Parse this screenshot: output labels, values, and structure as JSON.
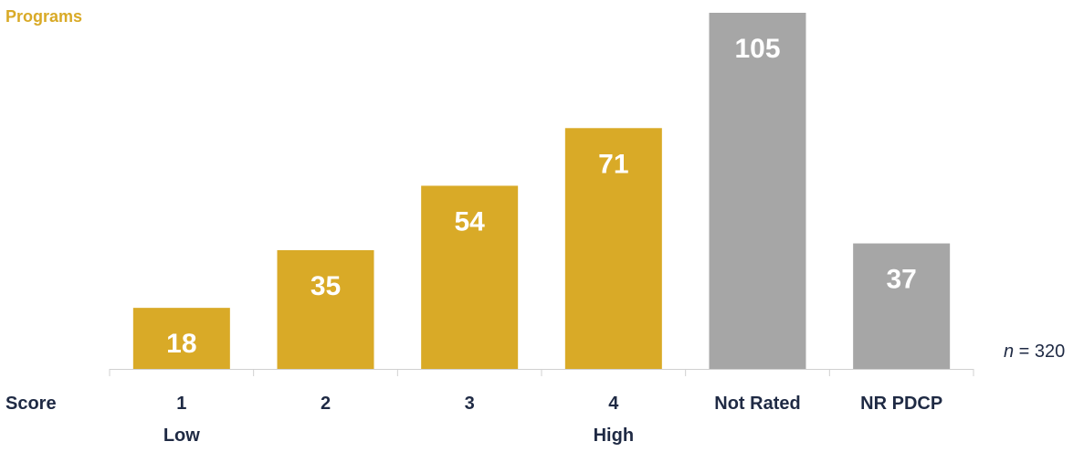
{
  "chart_data": {
    "type": "bar",
    "ylabel": "Programs",
    "xaxis_label": "Score",
    "categories": [
      "1",
      "2",
      "3",
      "4",
      "Not Rated",
      "NR PDCP"
    ],
    "sublabels": [
      "Low",
      "",
      "",
      "High",
      "",
      ""
    ],
    "values": [
      18,
      35,
      54,
      71,
      105,
      37
    ],
    "data_labels": [
      "18",
      "35",
      "54",
      "71",
      "105",
      "37"
    ],
    "bar_colors": [
      "#d9aa27",
      "#d9aa27",
      "#d9aa27",
      "#d9aa27",
      "#a6a6a6",
      "#a6a6a6"
    ],
    "ylim": [
      0,
      105
    ],
    "grid": false,
    "annotation": {
      "n_label": "n",
      "n_text": " = 320"
    },
    "colors": {
      "accent": "#d9aa27",
      "neutral": "#a6a6a6",
      "data_label": "#ffffff",
      "axis_text": "#1f2a44",
      "axis_line": "#d0d0d0"
    }
  }
}
